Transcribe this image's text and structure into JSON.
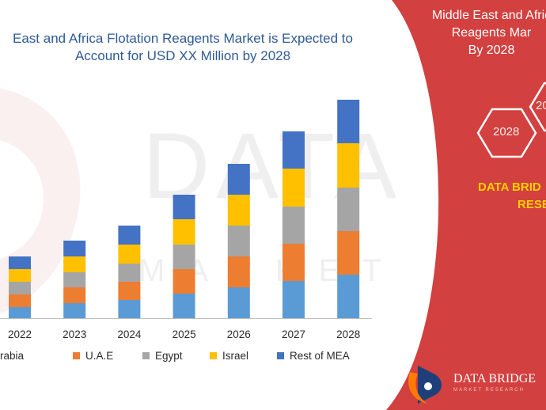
{
  "title": {
    "line1": "East and Africa Flotation Reagents Market is Expected to",
    "line2": "Account for USD XX Million by 2028"
  },
  "panel": {
    "title_line1": "Middle East and Afric",
    "title_line2": "Reagents Mar",
    "title_line3": "By 2028",
    "hex_labels": [
      "2028",
      "20"
    ],
    "brand_line1": "DATA BRID",
    "brand_line2": "RESE",
    "logo_name": "DATA BRIDGE",
    "logo_tagline": "MARKET RESEARCH",
    "bg_color": "#d2403f",
    "brand_text_color": "#ffd000"
  },
  "watermark": {
    "line1": "DATA BRIDGE",
    "line2": "MARKET RESEARCH"
  },
  "chart_data": {
    "type": "bar",
    "stacked": true,
    "categories": [
      "2022",
      "2023",
      "2024",
      "2025",
      "2026",
      "2027",
      "2028"
    ],
    "series": [
      {
        "name": "li Arabia",
        "color": "#5b9bd5",
        "values": [
          14,
          19,
          23,
          31,
          39,
          47,
          55
        ]
      },
      {
        "name": "U.A.E",
        "color": "#ed7d31",
        "values": [
          16,
          20,
          23,
          31,
          39,
          47,
          55
        ]
      },
      {
        "name": "Egypt",
        "color": "#a5a5a5",
        "values": [
          16,
          19,
          23,
          31,
          39,
          47,
          55
        ]
      },
      {
        "name": "Israel",
        "color": "#ffc000",
        "values": [
          16,
          20,
          24,
          32,
          39,
          48,
          56
        ]
      },
      {
        "name": "Rest of MEA",
        "color": "#4472c4",
        "values": [
          16,
          20,
          24,
          31,
          39,
          47,
          55
        ]
      }
    ],
    "legend_position": "bottom",
    "grid": false
  }
}
